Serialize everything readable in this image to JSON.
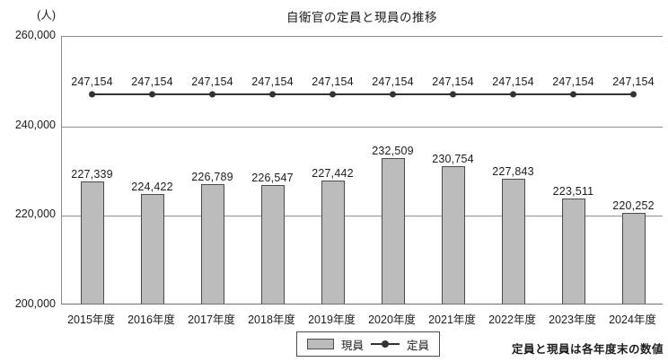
{
  "unit_label": "(人)",
  "title": "自衛官の定員と現員の推移",
  "note": "定員と現員は各年度末の数値",
  "legend": {
    "bar_label": "現員",
    "line_label": "定員"
  },
  "colors": {
    "bar_fill": "#bcbcbc",
    "bar_border": "#4b4b4b",
    "line": "#333333",
    "grid": "#8f8f8f",
    "text": "#1c1c1c"
  },
  "chart_data": {
    "type": "bar",
    "title": "自衛官の定員と現員の推移",
    "ylabel": "(人)",
    "categories": [
      "2015年度",
      "2016年度",
      "2017年度",
      "2018年度",
      "2019年度",
      "2020年度",
      "2021年度",
      "2022年度",
      "2023年度",
      "2024年度"
    ],
    "series": [
      {
        "name": "現員",
        "type": "bar",
        "values": [
          227339,
          224422,
          226789,
          226547,
          227442,
          232509,
          230754,
          227843,
          223511,
          220252
        ]
      },
      {
        "name": "定員",
        "type": "line",
        "values": [
          247154,
          247154,
          247154,
          247154,
          247154,
          247154,
          247154,
          247154,
          247154,
          247154
        ]
      }
    ],
    "ylim": [
      200000,
      260000
    ],
    "yticks": [
      200000,
      220000,
      240000,
      260000
    ],
    "ytick_labels": [
      "200,000",
      "220,000",
      "240,000",
      "260,000"
    ],
    "grid": true,
    "legend_position": "bottom",
    "data_labels": true
  }
}
